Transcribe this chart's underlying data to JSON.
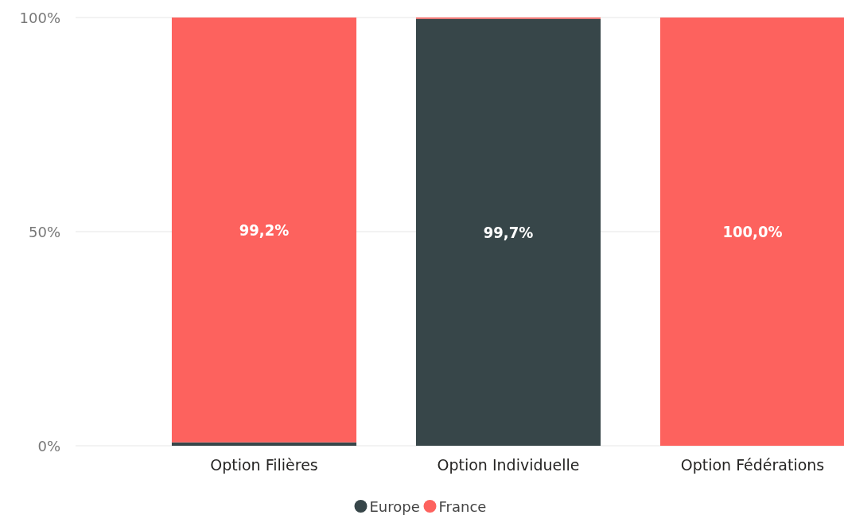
{
  "chart_data": {
    "type": "bar",
    "stacked": true,
    "categories": [
      "Option Filières",
      "Option Individuelle",
      "Option Fédérations"
    ],
    "series": [
      {
        "name": "Europe",
        "color": "#374649",
        "values": [
          0.8,
          99.7,
          0
        ],
        "value_labels": [
          null,
          "99,7%",
          null
        ]
      },
      {
        "name": "France",
        "color": "#fd625e",
        "values": [
          99.2,
          0.3,
          100
        ],
        "value_labels": [
          "99,2%",
          null,
          "100,0%"
        ]
      }
    ],
    "ylim": [
      0,
      100
    ],
    "yticks": [
      {
        "value": 0,
        "label": "0%"
      },
      {
        "value": 50,
        "label": "50%"
      },
      {
        "value": 100,
        "label": "100%"
      }
    ],
    "grid": "y",
    "legend": "bottom"
  }
}
